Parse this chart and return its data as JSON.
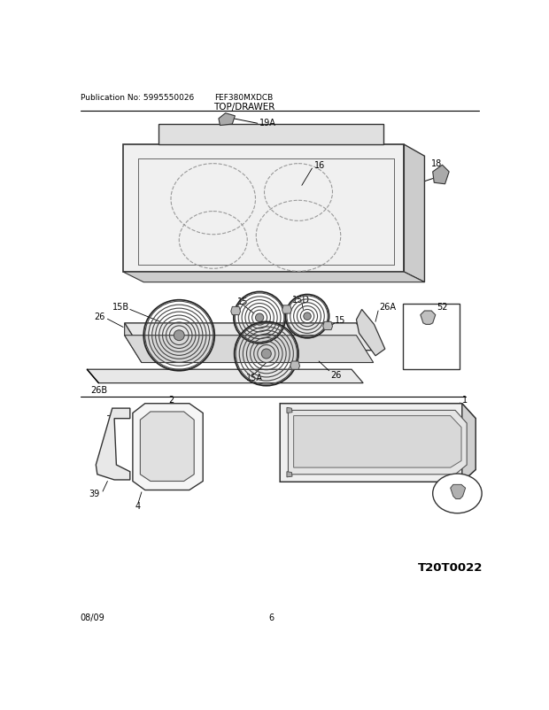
{
  "title": "TOP/DRAWER",
  "model": "FEF380MXDCB",
  "pub_no": "Publication No: 5995550026",
  "date": "08/09",
  "page": "6",
  "diagram_id": "T20T0022",
  "bg_color": "#ffffff",
  "line_color": "#000000"
}
